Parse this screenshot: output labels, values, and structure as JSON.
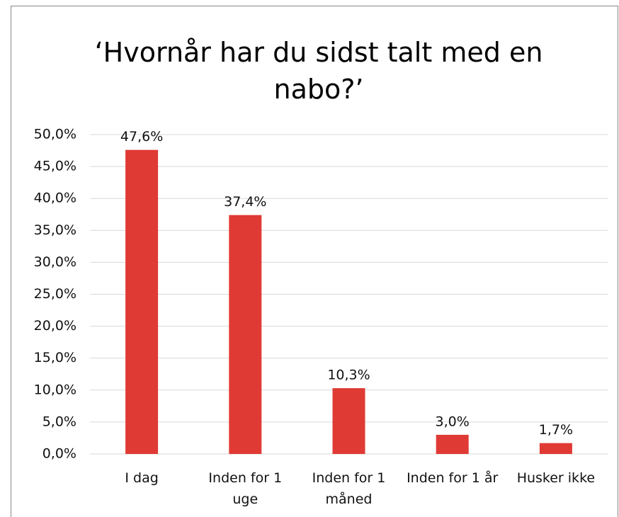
{
  "chart_data": {
    "type": "bar",
    "title": "‘Hvornår har du sidst talt med en nabo?’",
    "categories": [
      "I dag",
      "Inden for 1 uge",
      "Inden for 1 måned",
      "Inden for 1 år",
      "Husker ikke"
    ],
    "values": [
      47.6,
      37.4,
      10.3,
      3.0,
      1.7
    ],
    "value_labels": [
      "47,6%",
      "37,4%",
      "10,3%",
      "3,0%",
      "1,7%"
    ],
    "color": "#e03a35",
    "ylim": [
      0,
      50
    ],
    "yticks": [
      {
        "value": 0,
        "label": "0,0%"
      },
      {
        "value": 5,
        "label": "5,0%"
      },
      {
        "value": 10,
        "label": "10,0%"
      },
      {
        "value": 15,
        "label": "15,0%"
      },
      {
        "value": 20,
        "label": "20,0%"
      },
      {
        "value": 25,
        "label": "25,0%"
      },
      {
        "value": 30,
        "label": "30,0%"
      },
      {
        "value": 35,
        "label": "35,0%"
      },
      {
        "value": 40,
        "label": "40,0%"
      },
      {
        "value": 45,
        "label": "45,0%"
      },
      {
        "value": 50,
        "label": "50,0%"
      }
    ],
    "grid": true
  }
}
